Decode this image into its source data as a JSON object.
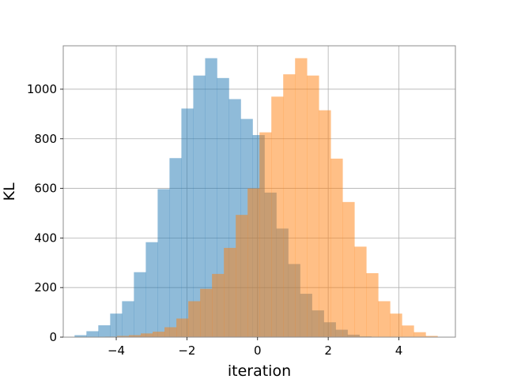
{
  "chart_data": {
    "type": "bar",
    "title": "",
    "xlabel": "iteration",
    "ylabel": "KL",
    "xlim": [
      -5.5,
      5.6
    ],
    "ylim": [
      0,
      1175
    ],
    "grid": true,
    "xticks": [
      -4,
      -2,
      0,
      2,
      4
    ],
    "xtick_labels": [
      "−4",
      "−2",
      "0",
      "2",
      "4"
    ],
    "yticks": [
      0,
      200,
      400,
      600,
      800,
      1000
    ],
    "ytick_labels": [
      "0",
      "200",
      "400",
      "600",
      "800",
      "1000"
    ],
    "alpha": 0.5,
    "series": [
      {
        "color": "#1f77b4",
        "bin_start": -5.18,
        "bin_width": 0.336,
        "values": [
          8,
          24,
          48,
          95,
          145,
          262,
          383,
          597,
          722,
          922,
          1055,
          1125,
          1045,
          960,
          880,
          815,
          583,
          438,
          295,
          175,
          108,
          60,
          30,
          10,
          3,
          1
        ]
      },
      {
        "color": "#ff7f0e",
        "bin_start": -4.65,
        "bin_width": 0.336,
        "values": [
          1,
          2,
          5,
          8,
          15,
          22,
          40,
          75,
          145,
          195,
          255,
          360,
          493,
          600,
          826,
          970,
          1060,
          1125,
          1055,
          915,
          720,
          545,
          365,
          258,
          145,
          95,
          47,
          20,
          5
        ]
      }
    ]
  }
}
